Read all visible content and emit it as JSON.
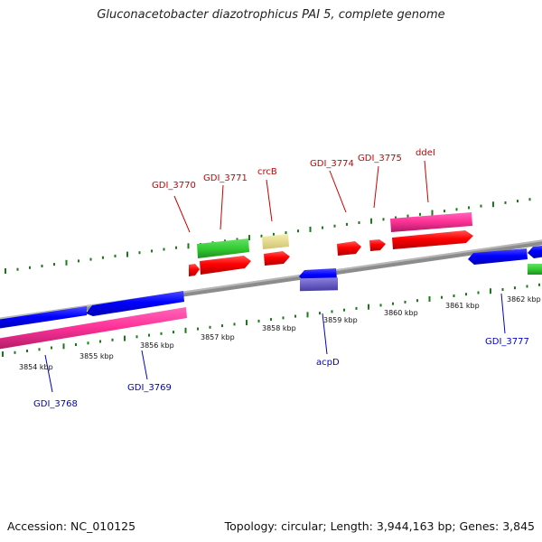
{
  "title": "Gluconacetobacter diazotrophicus PAI 5, complete genome",
  "footer": {
    "accession": "Accession: NC_010125",
    "summary": "Topology: circular; Length: 3,944,163 bp; Genes: 3,845"
  },
  "colors": {
    "backbone": "#8c8c8c",
    "tick": "#1a7a1a",
    "forward_label": "#cc0000",
    "reverse_label": "#0000cc"
  },
  "scale": {
    "unit": "kbp",
    "ticks": [
      {
        "label": "3854 kbp",
        "kbp": 3854
      },
      {
        "label": "3855 kbp",
        "kbp": 3855
      },
      {
        "label": "3856 kbp",
        "kbp": 3856
      },
      {
        "label": "3857 kbp",
        "kbp": 3857
      },
      {
        "label": "3858 kbp",
        "kbp": 3858
      },
      {
        "label": "3859 kbp",
        "kbp": 3859
      },
      {
        "label": "3860 kbp",
        "kbp": 3860
      },
      {
        "label": "3861 kbp",
        "kbp": 3861
      },
      {
        "label": "3862 kbp",
        "kbp": 3862
      }
    ]
  },
  "features": {
    "forward": [
      {
        "label": "GDI_3770",
        "color": "#ff0000"
      },
      {
        "label": "GDI_3771",
        "color": "#ff0000"
      },
      {
        "label": "crcB",
        "color": "#ff0000"
      },
      {
        "label": "GDI_3774",
        "color": "#ff0000"
      },
      {
        "label": "GDI_3775",
        "color": "#ff0000"
      },
      {
        "label": "ddeI",
        "color": "#ff0000"
      }
    ],
    "reverse": [
      {
        "label": "GDI_3768",
        "color": "#0000ff"
      },
      {
        "label": "GDI_3769",
        "color": "#0000ff"
      },
      {
        "label": "acpD",
        "color": "#0000ff"
      },
      {
        "label": "GDI_3777",
        "color": "#0000ff"
      }
    ],
    "other_tracks": {
      "forward_cds_upper": "#33cc33",
      "forward_cds_upper_pale": "#e8e08a",
      "forward_gene_pink": "#ff3399",
      "reverse_gene_pink": "#ff3399",
      "reverse_gene_purple": "#6a5acd",
      "right_green": "#33cc33"
    }
  }
}
